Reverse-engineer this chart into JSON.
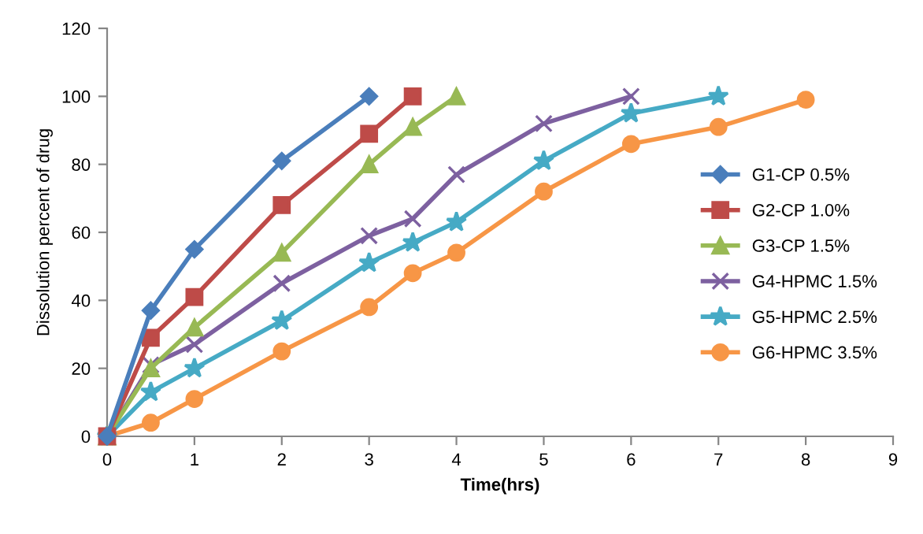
{
  "chart_data": {
    "type": "line",
    "xlabel": "Time(hrs)",
    "ylabel": "Dissolution percent of drug",
    "xlim": [
      0,
      9
    ],
    "xticks": [
      0,
      1,
      2,
      3,
      4,
      5,
      6,
      7,
      8,
      9
    ],
    "ylim": [
      0,
      120
    ],
    "yticks": [
      0,
      20,
      40,
      60,
      80,
      100,
      120
    ],
    "grid": false,
    "legend": "right",
    "line_style": "solid",
    "series": [
      {
        "name": "G1-CP 0.5%",
        "color": "#4a7ebb",
        "marker": "diamond",
        "x": [
          0,
          0.5,
          1,
          2,
          3
        ],
        "values": [
          0,
          37,
          55,
          81,
          100
        ]
      },
      {
        "name": "G2-CP 1.0%",
        "color": "#be4b48",
        "marker": "square",
        "x": [
          0,
          0.5,
          1,
          2,
          3,
          3.5
        ],
        "values": [
          0,
          29,
          41,
          68,
          89,
          100
        ]
      },
      {
        "name": "G3-CP 1.5%",
        "color": "#98b954",
        "marker": "triangle",
        "x": [
          0,
          0.5,
          1,
          2,
          3,
          3.5,
          4
        ],
        "values": [
          0,
          20,
          32,
          54,
          80,
          91,
          100
        ]
      },
      {
        "name": "G4-HPMC 1.5%",
        "color": "#7d60a0",
        "marker": "cross",
        "x": [
          0,
          0.5,
          1,
          2,
          3,
          3.5,
          4,
          5,
          6
        ],
        "values": [
          0,
          21,
          27,
          45,
          59,
          64,
          77,
          92,
          100
        ]
      },
      {
        "name": "G5-HPMC 2.5%",
        "color": "#46aac5",
        "marker": "star",
        "x": [
          0,
          0.5,
          1,
          2,
          3,
          3.5,
          4,
          5,
          6,
          7
        ],
        "values": [
          0,
          13,
          20,
          34,
          51,
          57,
          63,
          81,
          95,
          100
        ]
      },
      {
        "name": "G6-HPMC 3.5%",
        "color": "#f79646",
        "marker": "circle",
        "x": [
          0,
          0.5,
          1,
          2,
          3,
          3.5,
          4,
          5,
          6,
          7,
          8
        ],
        "values": [
          0,
          4,
          11,
          25,
          38,
          48,
          54,
          72,
          86,
          91,
          99
        ]
      }
    ]
  }
}
